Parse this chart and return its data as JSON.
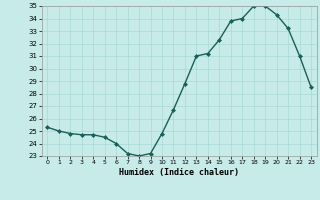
{
  "x": [
    0,
    1,
    2,
    3,
    4,
    5,
    6,
    7,
    8,
    9,
    10,
    11,
    12,
    13,
    14,
    15,
    16,
    17,
    18,
    19,
    20,
    21,
    22,
    23
  ],
  "y": [
    25.3,
    25.0,
    24.8,
    24.7,
    24.7,
    24.5,
    24.0,
    23.2,
    23.0,
    23.2,
    24.8,
    26.7,
    28.8,
    31.0,
    31.2,
    32.3,
    33.8,
    34.0,
    35.0,
    35.0,
    34.3,
    33.2,
    31.0,
    28.5
  ],
  "xlabel": "Humidex (Indice chaleur)",
  "ylim": [
    23,
    35
  ],
  "xlim_min": -0.5,
  "xlim_max": 23.5,
  "bg_color": "#c6ebe8",
  "line_color": "#1a5f5a",
  "marker_color": "#1a5f5a",
  "grid_color": "#a8d8d4",
  "yticks": [
    23,
    24,
    25,
    26,
    27,
    28,
    29,
    30,
    31,
    32,
    33,
    34,
    35
  ],
  "xtick_labels": [
    "0",
    "1",
    "2",
    "3",
    "4",
    "5",
    "6",
    "7",
    "8",
    "9",
    "10",
    "11",
    "12",
    "13",
    "14",
    "15",
    "16",
    "17",
    "18",
    "19",
    "20",
    "21",
    "22",
    "23"
  ]
}
